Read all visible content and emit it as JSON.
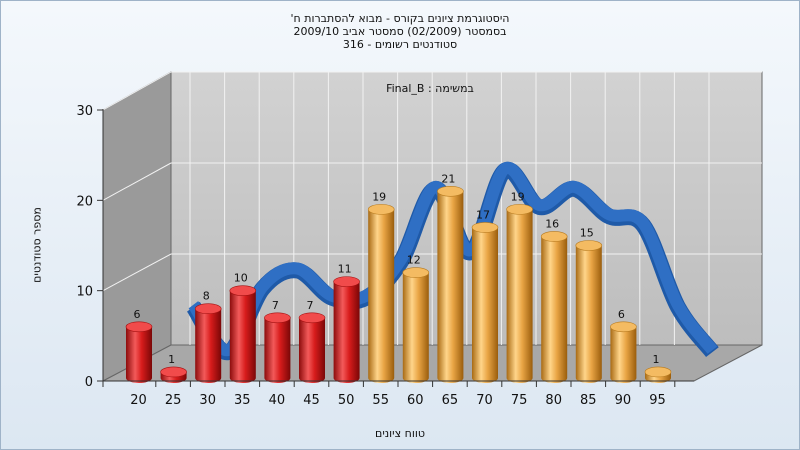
{
  "titles": {
    "line1": "היסטוגרמת ציונים בקורס - מבוא להסתברות ח'",
    "line2": "בסמסטר  (02/2009)  סמסטר אביב 2009/10",
    "line3": "סטודנטים רשומים - 316"
  },
  "inner_label": "במשימה : Final_B",
  "colors": {
    "fail": "#d81c1c",
    "pass": "#e9a545",
    "line": "#2f6fc4",
    "wall": "#9a9a9a",
    "back": "#c8c8c8"
  },
  "chart_data": {
    "type": "bar",
    "title": "היסטוגרמת ציונים בקורס - מבוא להסתברות ח'",
    "xlabel": "טווח ציונים",
    "ylabel": "מספר סטודנטים",
    "ylim": [
      0,
      30
    ],
    "yticks": [
      0,
      10,
      20,
      30
    ],
    "xticks": [
      20,
      25,
      30,
      35,
      40,
      45,
      50,
      55,
      60,
      65,
      70,
      75,
      80,
      85,
      90,
      95
    ],
    "categories": [
      20,
      25,
      30,
      35,
      40,
      45,
      50,
      55,
      60,
      65,
      70,
      75,
      80,
      85,
      90,
      95
    ],
    "values": [
      6,
      1,
      8,
      10,
      7,
      7,
      11,
      19,
      12,
      21,
      17,
      19,
      16,
      15,
      6,
      1
    ],
    "colors": [
      "fail",
      "fail",
      "fail",
      "fail",
      "fail",
      "fail",
      "fail",
      "pass",
      "pass",
      "pass",
      "pass",
      "pass",
      "pass",
      "pass",
      "pass",
      "pass"
    ],
    "line_series": {
      "type": "smooth-curve",
      "values": [
        6,
        1,
        8,
        10,
        7,
        7,
        11,
        19,
        12,
        21,
        17,
        19,
        16,
        15,
        6,
        1
      ]
    },
    "grid": true
  }
}
